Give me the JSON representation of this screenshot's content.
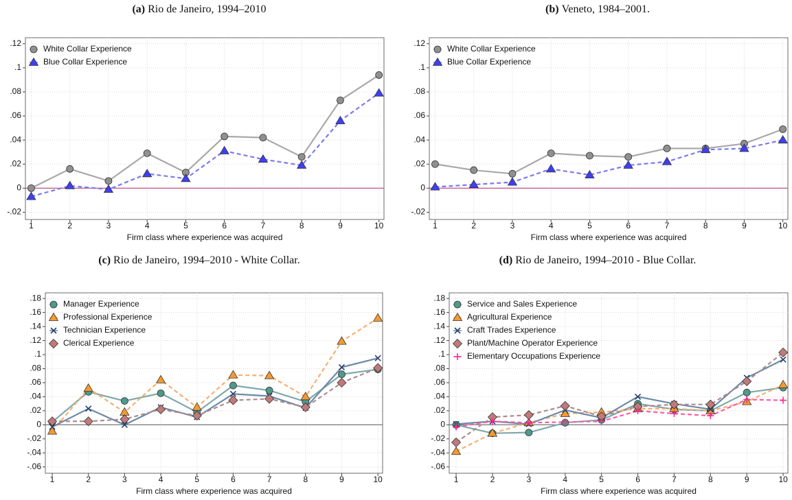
{
  "chart_data": [
    {
      "type": "line",
      "panel": "(a)",
      "title": "Rio de Janeiro, 1994–2010",
      "x_label": "Firm class where experience was acquired",
      "x": [
        1,
        2,
        3,
        4,
        5,
        6,
        7,
        8,
        9,
        10
      ],
      "xlim": [
        0.85,
        10.13
      ],
      "xticks": [
        1,
        2,
        3,
        4,
        5,
        6,
        7,
        8,
        9,
        10
      ],
      "ylim": [
        -0.026,
        0.125
      ],
      "yticks": [
        {
          "value": -0.02,
          "label": "-.02"
        },
        0,
        {
          "value": 0.02,
          "label": ".02"
        },
        {
          "value": 0.04,
          "label": ".04"
        },
        {
          "value": 0.06,
          "label": ".06"
        },
        {
          "value": 0.08,
          "label": ".08"
        },
        {
          "value": 0.1,
          "label": ".1"
        },
        {
          "value": 0.12,
          "label": ".12"
        }
      ],
      "grid": true,
      "zero_line_color": "#c0508a",
      "legend": "top-left",
      "series": [
        {
          "name": "White Collar Experience",
          "color": "#a8a8a8",
          "marker_color": "#909090",
          "marker": "circle",
          "dashed": false,
          "values": [
            0.0,
            0.016,
            0.006,
            0.029,
            0.013,
            0.043,
            0.042,
            0.026,
            0.073,
            0.094
          ]
        },
        {
          "name": "Blue Collar Experience",
          "color": "#7a7af0",
          "marker_color": "#3f3ff5",
          "marker": "triangle",
          "dashed": true,
          "values": [
            -0.007,
            0.002,
            -0.001,
            0.012,
            0.008,
            0.031,
            0.024,
            0.019,
            0.056,
            0.079
          ]
        }
      ]
    },
    {
      "type": "line",
      "panel": "(b)",
      "title": "Veneto, 1984–2001.",
      "x_label": "Firm class where experience was acquired",
      "x": [
        1,
        2,
        3,
        4,
        5,
        6,
        7,
        8,
        9,
        10
      ],
      "xlim": [
        0.85,
        10.13
      ],
      "xticks": [
        1,
        2,
        3,
        4,
        5,
        6,
        7,
        8,
        9,
        10
      ],
      "ylim": [
        -0.026,
        0.125
      ],
      "yticks": [
        {
          "value": -0.02,
          "label": "-.02"
        },
        0,
        {
          "value": 0.02,
          "label": ".02"
        },
        {
          "value": 0.04,
          "label": ".04"
        },
        {
          "value": 0.06,
          "label": ".06"
        },
        {
          "value": 0.08,
          "label": ".08"
        },
        {
          "value": 0.1,
          "label": ".1"
        },
        {
          "value": 0.12,
          "label": ".12"
        }
      ],
      "grid": true,
      "zero_line_color": "#c0508a",
      "legend": "top-left",
      "series": [
        {
          "name": "White Collar Experience",
          "color": "#a8a8a8",
          "marker_color": "#909090",
          "marker": "circle",
          "dashed": false,
          "values": [
            0.02,
            0.015,
            0.012,
            0.029,
            0.027,
            0.026,
            0.033,
            0.033,
            0.037,
            0.049
          ]
        },
        {
          "name": "Blue Collar Experience",
          "color": "#7a7af0",
          "marker_color": "#3f3ff5",
          "marker": "triangle",
          "dashed": true,
          "values": [
            0.001,
            0.003,
            0.005,
            0.016,
            0.011,
            0.019,
            0.022,
            0.032,
            0.033,
            0.04
          ]
        }
      ]
    },
    {
      "type": "line",
      "panel": "(c)",
      "title": "Rio de Janeiro, 1994–2010 - White Collar.",
      "x_label": "Firm class where experience was acquired",
      "x": [
        1,
        2,
        3,
        4,
        5,
        6,
        7,
        8,
        9,
        10
      ],
      "xlim": [
        0.81,
        10.13
      ],
      "xticks": [
        1,
        2,
        3,
        4,
        5,
        6,
        7,
        8,
        9,
        10
      ],
      "ylim": [
        -0.069,
        0.188
      ],
      "yticks": [
        {
          "value": -0.06,
          "label": "-.06"
        },
        {
          "value": -0.04,
          "label": "-.04"
        },
        {
          "value": -0.02,
          "label": "-.02"
        },
        0,
        {
          "value": 0.02,
          "label": ".02"
        },
        {
          "value": 0.04,
          "label": ".04"
        },
        {
          "value": 0.06,
          "label": ".06"
        },
        {
          "value": 0.08,
          "label": ".08"
        },
        {
          "value": 0.1,
          "label": ".1"
        },
        {
          "value": 0.12,
          "label": ".12"
        },
        {
          "value": 0.14,
          "label": ".14"
        },
        {
          "value": 0.16,
          "label": ".16"
        },
        {
          "value": 0.18,
          "label": ".18"
        }
      ],
      "grid": true,
      "zero_line_color": "#777777",
      "legend": "top-left",
      "series": [
        {
          "name": "Manager Experience",
          "color": "#7fa8ac",
          "marker_color": "#4f9a8a",
          "marker": "circle",
          "dashed": false,
          "values": [
            0.004,
            0.047,
            0.034,
            0.045,
            0.018,
            0.056,
            0.049,
            0.033,
            0.072,
            0.079
          ]
        },
        {
          "name": "Professional Experience",
          "color": "#f4b070",
          "marker_color": "#f39a30",
          "marker": "triangle",
          "dashed": true,
          "values": [
            -0.009,
            0.052,
            0.018,
            0.064,
            0.025,
            0.071,
            0.07,
            0.04,
            0.119,
            0.152
          ]
        },
        {
          "name": "Technician Experience",
          "color": "#6a8aa8",
          "marker_color": "#2a3f6a",
          "marker": "x",
          "dashed": false,
          "values": [
            -0.003,
            0.023,
            0.0,
            0.025,
            0.011,
            0.044,
            0.041,
            0.024,
            0.082,
            0.095
          ]
        },
        {
          "name": "Clerical Experience",
          "color": "#b08a8a",
          "marker_color": "#c07a7a",
          "marker": "diamond",
          "dashed": true,
          "values": [
            0.005,
            0.005,
            0.008,
            0.022,
            0.013,
            0.035,
            0.037,
            0.025,
            0.06,
            0.081
          ]
        }
      ]
    },
    {
      "type": "line",
      "panel": "(d)",
      "title": "Rio de Janeiro, 1994–2010 - Blue Collar.",
      "x_label": "Firm class where experience was acquired",
      "x": [
        1,
        2,
        3,
        4,
        5,
        6,
        7,
        8,
        9,
        10
      ],
      "xlim": [
        0.81,
        10.13
      ],
      "xticks": [
        1,
        2,
        3,
        4,
        5,
        6,
        7,
        8,
        9,
        10
      ],
      "ylim": [
        -0.069,
        0.188
      ],
      "yticks": [
        {
          "value": -0.06,
          "label": "-.06"
        },
        {
          "value": -0.04,
          "label": "-.04"
        },
        {
          "value": -0.02,
          "label": "-.02"
        },
        0,
        {
          "value": 0.02,
          "label": ".02"
        },
        {
          "value": 0.04,
          "label": ".04"
        },
        {
          "value": 0.06,
          "label": ".06"
        },
        {
          "value": 0.08,
          "label": ".08"
        },
        {
          "value": 0.1,
          "label": ".1"
        },
        {
          "value": 0.12,
          "label": ".12"
        },
        {
          "value": 0.14,
          "label": ".14"
        },
        {
          "value": 0.16,
          "label": ".16"
        },
        {
          "value": 0.18,
          "label": ".18"
        }
      ],
      "grid": true,
      "zero_line_color": "#777777",
      "legend": "top-left",
      "series": [
        {
          "name": "Service and Sales Experience",
          "color": "#7fa8ac",
          "marker_color": "#4f9a8a",
          "marker": "circle",
          "dashed": false,
          "values": [
            0.0,
            -0.012,
            -0.011,
            0.003,
            0.007,
            0.03,
            0.022,
            0.02,
            0.046,
            0.053
          ]
        },
        {
          "name": "Agricultural Experience",
          "color": "#f4b070",
          "marker_color": "#f39a30",
          "marker": "triangle",
          "dashed": true,
          "values": [
            -0.038,
            -0.012,
            0.003,
            0.016,
            0.018,
            0.023,
            0.023,
            0.02,
            0.033,
            0.057
          ]
        },
        {
          "name": "Craft Trades Experience",
          "color": "#6a8aa8",
          "marker_color": "#2a3f6a",
          "marker": "x",
          "dashed": false,
          "values": [
            0.001,
            0.005,
            0.001,
            0.021,
            0.01,
            0.04,
            0.03,
            0.022,
            0.067,
            0.093
          ]
        },
        {
          "name": "Plant/Machine Operator Experience",
          "color": "#b08a8a",
          "marker_color": "#c07a7a",
          "marker": "diamond",
          "dashed": true,
          "values": [
            -0.025,
            0.011,
            0.014,
            0.027,
            0.012,
            0.026,
            0.029,
            0.029,
            0.062,
            0.103
          ]
        },
        {
          "name": "Elementary Occupations Experience",
          "color": "#ff5aa8",
          "marker_color": "#ff2a90",
          "marker": "plus",
          "dashed": true,
          "values": [
            -0.003,
            0.005,
            0.003,
            0.004,
            0.005,
            0.02,
            0.016,
            0.013,
            0.036,
            0.035
          ]
        }
      ]
    }
  ]
}
